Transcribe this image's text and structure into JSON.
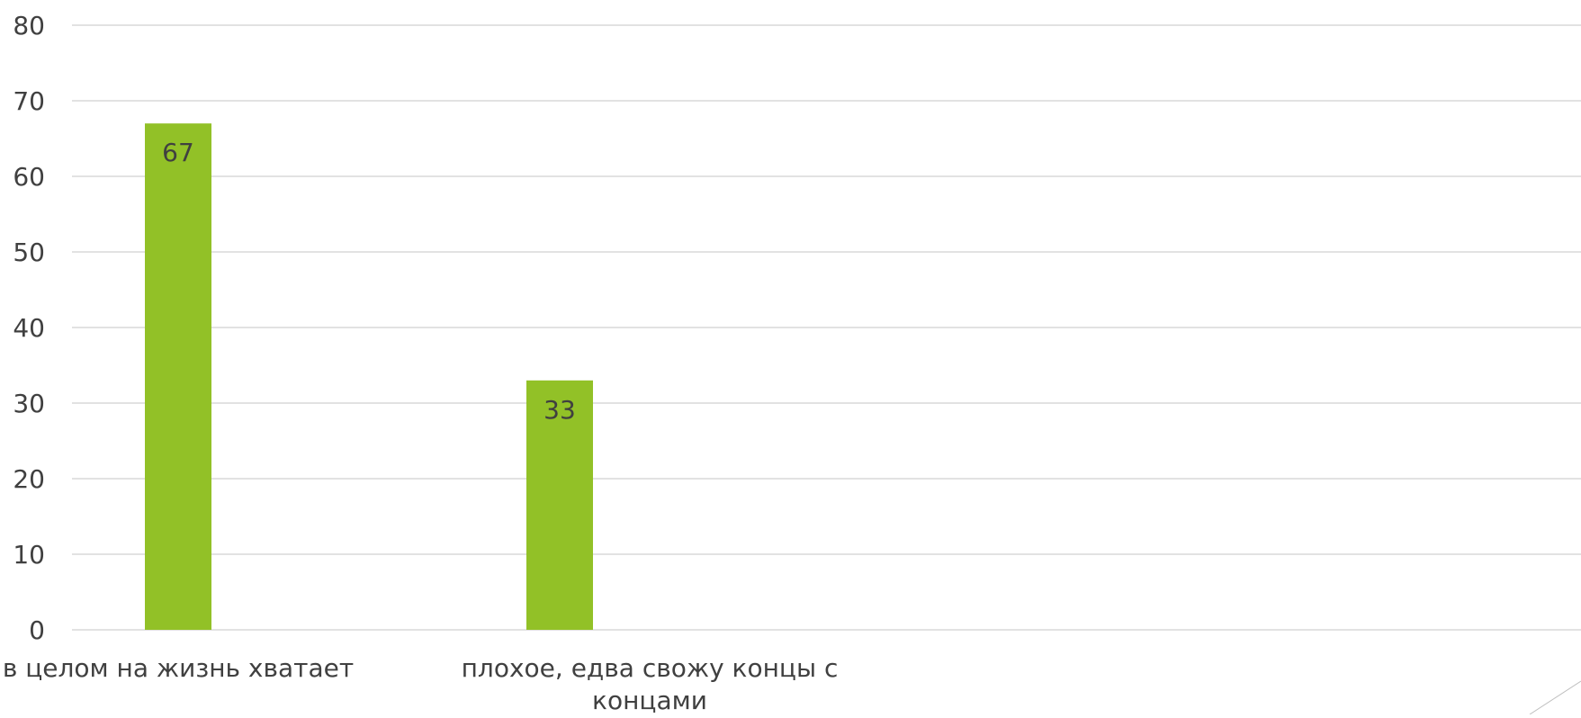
{
  "chart_data": {
    "type": "bar",
    "categories": [
      "в целом на жизнь хватает",
      "плохое, едва свожу концы с концами"
    ],
    "category_lines": [
      [
        "в целом на жизнь хватает"
      ],
      [
        "плохое, едва свожу концы с",
        "концами"
      ]
    ],
    "values": [
      67,
      33
    ],
    "data_labels": [
      "67",
      "33"
    ],
    "ylim": [
      0,
      80
    ],
    "yticks": [
      0,
      10,
      20,
      30,
      40,
      50,
      60,
      70,
      80
    ],
    "ytick_labels": [
      "0",
      "10",
      "20",
      "30",
      "40",
      "50",
      "60",
      "70",
      "80"
    ],
    "grid": true,
    "legend": "none",
    "colors": {
      "bar": "#92C127",
      "grid": "#D9D9D9",
      "text": "#404040",
      "data_label": "#404040",
      "corner_line": "#BFBFBF"
    }
  }
}
